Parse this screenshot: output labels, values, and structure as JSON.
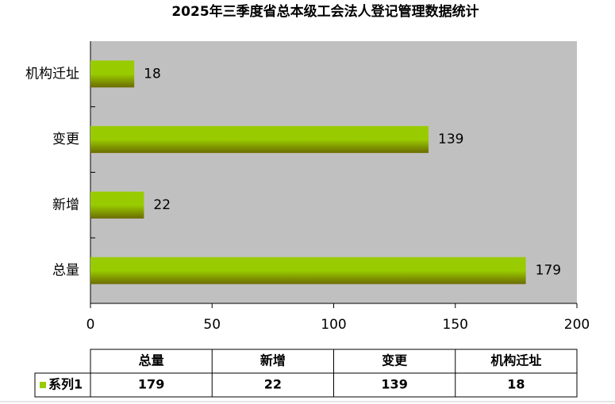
{
  "chart_data": {
    "type": "bar",
    "orientation": "horizontal",
    "title": "2025年三季度省总本级工会法人登记管理数据统计",
    "categories": [
      "总量",
      "新增",
      "变更",
      "机构迁址"
    ],
    "series": [
      {
        "name": "系列1",
        "color": "#99cc00",
        "values": [
          179,
          22,
          139,
          18
        ]
      }
    ],
    "xlim": [
      0,
      200
    ],
    "xticks": [
      0,
      50,
      100,
      150,
      200
    ],
    "data_table": true
  }
}
